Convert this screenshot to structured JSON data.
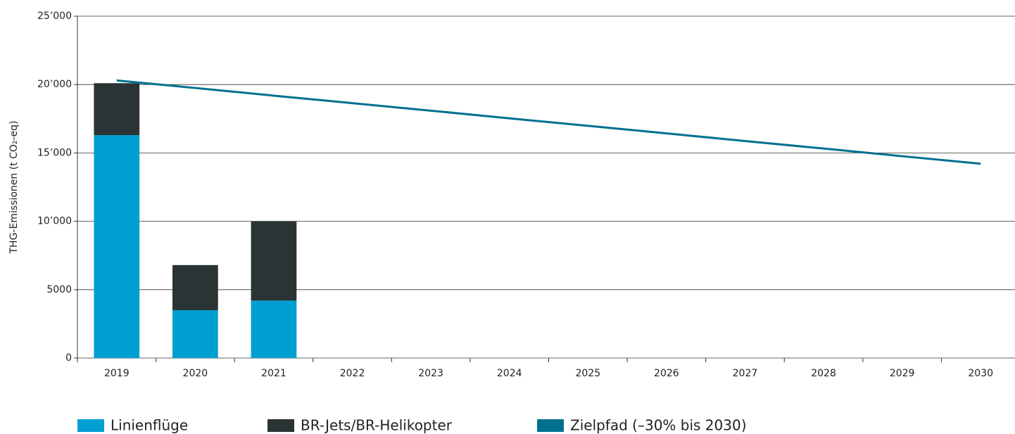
{
  "chart_data": {
    "type": "bar",
    "y_axis_label": "THG-Emissionen (t CO₂-eq)",
    "categories": [
      "2019",
      "2020",
      "2021",
      "2022",
      "2023",
      "2024",
      "2025",
      "2026",
      "2027",
      "2028",
      "2029",
      "2030"
    ],
    "series": [
      {
        "name": "Linienflüge",
        "color": "#009fd1",
        "type": "bar",
        "values": [
          16300,
          3500,
          4200,
          null,
          null,
          null,
          null,
          null,
          null,
          null,
          null,
          null
        ]
      },
      {
        "name": "BR-Jets/BR-Helikopter",
        "color": "#2a3435",
        "type": "bar",
        "values": [
          3800,
          3300,
          5800,
          null,
          null,
          null,
          null,
          null,
          null,
          null,
          null,
          null
        ]
      },
      {
        "name": "Zielpfad (–30% bis 2030)",
        "color": "#00708f",
        "type": "line",
        "values": [
          20300,
          19750,
          19190,
          18640,
          18090,
          17530,
          16980,
          16430,
          15870,
          15320,
          14760,
          14210
        ]
      }
    ],
    "stacked": true,
    "ylim": [
      0,
      25000
    ],
    "yticks": [
      0,
      5000,
      {
        "value": 10000,
        "label": "10’000"
      },
      {
        "value": 15000,
        "label": "15’000"
      },
      {
        "value": 20000,
        "label": "20’000"
      },
      {
        "value": 25000,
        "label": "25’000"
      }
    ],
    "grid": true,
    "legend": "bottom"
  }
}
